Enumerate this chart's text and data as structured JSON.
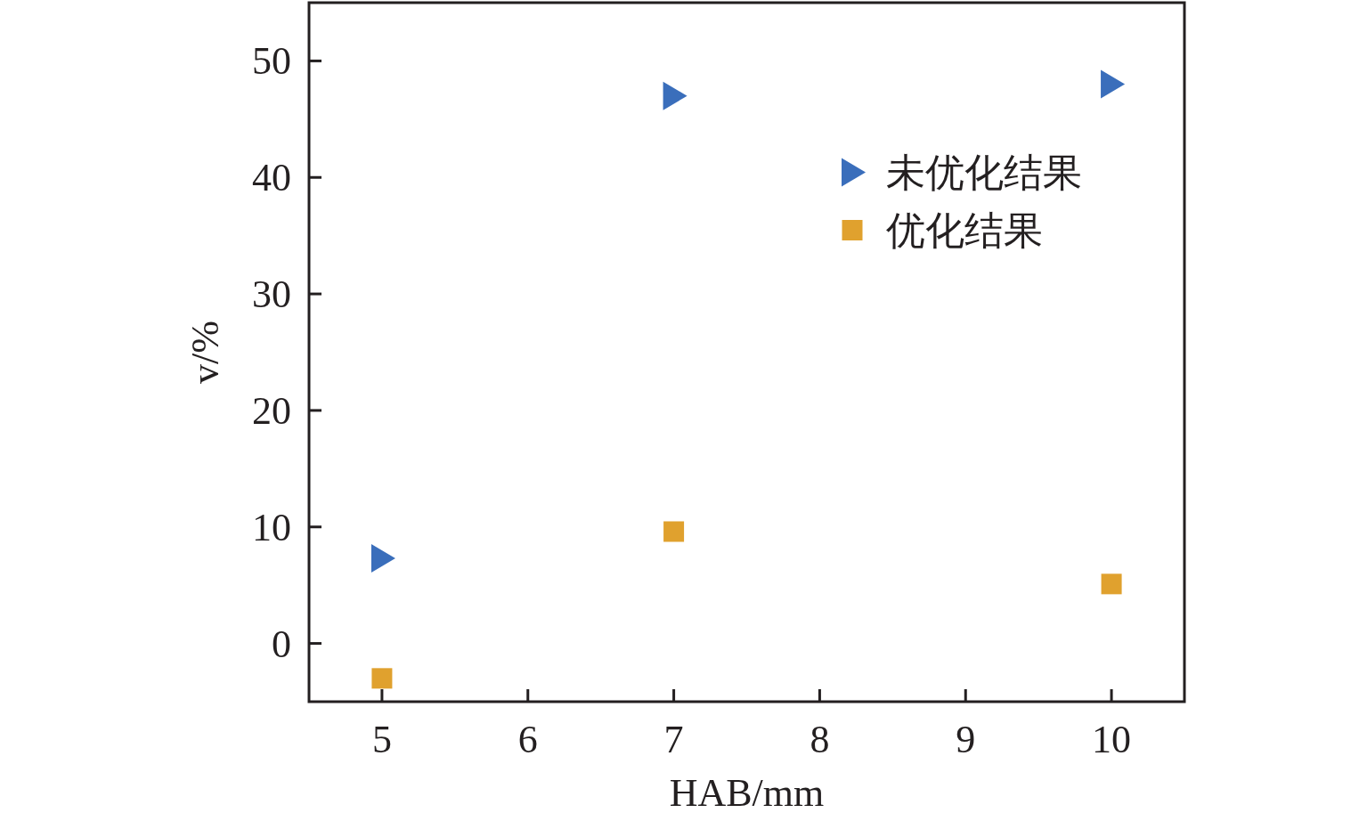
{
  "chart_data": {
    "type": "scatter",
    "xlabel": "HAB/mm",
    "ylabel": "v/%",
    "xlim": [
      4.5,
      10.5
    ],
    "ylim": [
      -5,
      55
    ],
    "xticks": [
      5,
      6,
      7,
      8,
      9,
      10
    ],
    "yticks": [
      0,
      10,
      20,
      30,
      40,
      50
    ],
    "legend": "top right",
    "series": [
      {
        "name": "未优化结果",
        "color": "#3a6ebb",
        "marker": "triangle",
        "x": [
          5,
          7,
          10
        ],
        "values": [
          7.3,
          47,
          48
        ]
      },
      {
        "name": "优化结果",
        "color": "#e0a12e",
        "marker": "square",
        "x": [
          5,
          7,
          10
        ],
        "values": [
          -3,
          9.6,
          5.1
        ]
      }
    ]
  }
}
